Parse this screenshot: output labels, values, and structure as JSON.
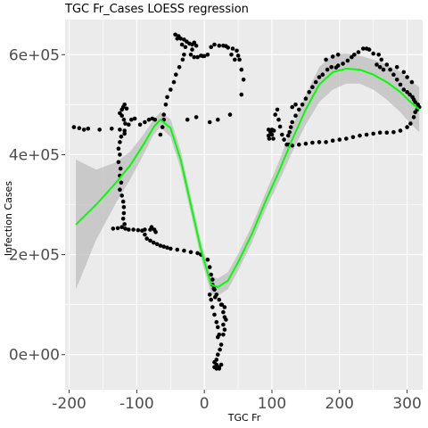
{
  "chart_data": {
    "type": "scatter",
    "title": "TGC Fr_Cases LOESS regression",
    "xlabel": "TGC Fr",
    "ylabel": "Infection Cases",
    "xlim": [
      -206,
      323
    ],
    "ylim": [
      -70000,
      670000
    ],
    "x_ticks": [
      -200,
      -100,
      0,
      100,
      200,
      300
    ],
    "x_tick_labels": [
      "-200",
      "-100",
      "0",
      "100",
      "200",
      "300"
    ],
    "y_ticks": [
      0,
      200000,
      400000,
      600000
    ],
    "y_tick_labels": [
      "0e+00",
      "2e+05",
      "4e+05",
      "6e+05"
    ],
    "grid": true,
    "legend": "none",
    "colors": {
      "panel": "#ebebeb",
      "grid": "#ffffff",
      "points": "#000000",
      "loess_line": "#00ff00",
      "confidence_band": "#bebebe"
    },
    "loess": {
      "x": [
        -190,
        -160,
        -130,
        -110,
        -90,
        -75,
        -65,
        -50,
        -35,
        -20,
        -5,
        10,
        20,
        35,
        50,
        70,
        90,
        110,
        130,
        150,
        170,
        190,
        210,
        230,
        250,
        270,
        290,
        305,
        318
      ],
      "y": [
        260000,
        300000,
        345000,
        378000,
        420000,
        455000,
        470000,
        453000,
        390000,
        300000,
        210000,
        140000,
        135000,
        148000,
        185000,
        240000,
        305000,
        365000,
        430000,
        490000,
        540000,
        565000,
        572000,
        570000,
        560000,
        545000,
        525000,
        505000,
        490000
      ],
      "lower": [
        130000,
        230000,
        305000,
        350000,
        400000,
        440000,
        455000,
        435000,
        372000,
        283000,
        193000,
        122000,
        118000,
        131000,
        168000,
        223000,
        288000,
        345000,
        405000,
        460000,
        505000,
        530000,
        542000,
        542000,
        530000,
        510000,
        485000,
        462000,
        445000
      ],
      "upper": [
        390000,
        370000,
        385000,
        406000,
        440000,
        470000,
        485000,
        471000,
        408000,
        317000,
        227000,
        158000,
        152000,
        165000,
        202000,
        257000,
        322000,
        385000,
        455000,
        520000,
        575000,
        600000,
        602000,
        598000,
        590000,
        580000,
        565000,
        548000,
        535000
      ]
    },
    "points": [
      [
        -193,
        455000
      ],
      [
        -185,
        453000
      ],
      [
        -178,
        450000
      ],
      [
        -172,
        452000
      ],
      [
        -155,
        450000
      ],
      [
        -137,
        452000
      ],
      [
        -125,
        450000
      ],
      [
        -118,
        448000
      ],
      [
        -125,
        483000
      ],
      [
        -122,
        490000
      ],
      [
        -120,
        495000
      ],
      [
        -118,
        500000
      ],
      [
        -115,
        492000
      ],
      [
        -122,
        478000
      ],
      [
        -119,
        470000
      ],
      [
        -117,
        462000
      ],
      [
        -112,
        460000
      ],
      [
        -108,
        470000
      ],
      [
        -103,
        472000
      ],
      [
        -95,
        460000
      ],
      [
        -88,
        465000
      ],
      [
        -82,
        470000
      ],
      [
        -77,
        472000
      ],
      [
        -73,
        470000
      ],
      [
        -118,
        442000
      ],
      [
        -123,
        436000
      ],
      [
        -125,
        425000
      ],
      [
        -127,
        412000
      ],
      [
        -125,
        400000
      ],
      [
        -127,
        385000
      ],
      [
        -124,
        372000
      ],
      [
        -125,
        358000
      ],
      [
        -123,
        344000
      ],
      [
        -125,
        330000
      ],
      [
        -122,
        318000
      ],
      [
        -120,
        306000
      ],
      [
        -119,
        295000
      ],
      [
        -119,
        283000
      ],
      [
        -120,
        272000
      ],
      [
        -118,
        261000
      ],
      [
        -122,
        255000
      ],
      [
        -128,
        253000
      ],
      [
        -135,
        252000
      ],
      [
        -117,
        252000
      ],
      [
        -112,
        250000
      ],
      [
        -105,
        250000
      ],
      [
        -98,
        249000
      ],
      [
        -92,
        248000
      ],
      [
        -88,
        250000
      ],
      [
        -80,
        250000
      ],
      [
        -88,
        240000
      ],
      [
        -85,
        232000
      ],
      [
        -80,
        228000
      ],
      [
        -75,
        224000
      ],
      [
        -70,
        221000
      ],
      [
        -65,
        218000
      ],
      [
        -60,
        216000
      ],
      [
        -55,
        214000
      ],
      [
        -50,
        212000
      ],
      [
        -40,
        210000
      ],
      [
        -30,
        208000
      ],
      [
        -20,
        205000
      ],
      [
        -10,
        203000
      ],
      [
        -5,
        200000
      ],
      [
        -78,
        255000
      ],
      [
        -74,
        250000
      ],
      [
        -72,
        245000
      ],
      [
        -60,
        470000
      ],
      [
        -62,
        455000
      ],
      [
        -65,
        440000
      ],
      [
        -60,
        480000
      ],
      [
        -57,
        500000
      ],
      [
        -55,
        515000
      ],
      [
        -50,
        530000
      ],
      [
        -45,
        545000
      ],
      [
        -42,
        560000
      ],
      [
        -37,
        575000
      ],
      [
        -32,
        590000
      ],
      [
        -30,
        600000
      ],
      [
        -28,
        615000
      ],
      [
        -33,
        620000
      ],
      [
        -40,
        632000
      ],
      [
        -43,
        640000
      ],
      [
        -38,
        637000
      ],
      [
        -35,
        632000
      ],
      [
        -30,
        630000
      ],
      [
        -26,
        626000
      ],
      [
        -22,
        622000
      ],
      [
        -18,
        620000
      ],
      [
        -15,
        624000
      ],
      [
        -12,
        618000
      ],
      [
        -18,
        610000
      ],
      [
        -20,
        600000
      ],
      [
        -15,
        595000
      ],
      [
        -10,
        595000
      ],
      [
        -5,
        598000
      ],
      [
        -2,
        597000
      ],
      [
        0,
        597000
      ],
      [
        5,
        600000
      ],
      [
        10,
        615000
      ],
      [
        15,
        620000
      ],
      [
        22,
        618000
      ],
      [
        28,
        618000
      ],
      [
        32,
        617000
      ],
      [
        35,
        614000
      ],
      [
        42,
        612000
      ],
      [
        48,
        608000
      ],
      [
        50,
        598000
      ],
      [
        52,
        590000
      ],
      [
        55,
        570000
      ],
      [
        58,
        550000
      ],
      [
        55,
        520000
      ],
      [
        38,
        480000
      ],
      [
        20,
        470000
      ],
      [
        8,
        465000
      ],
      [
        -12,
        475000
      ],
      [
        -25,
        470000
      ],
      [
        40,
        600000
      ],
      [
        45,
        590000
      ],
      [
        5,
        190000
      ],
      [
        8,
        175000
      ],
      [
        10,
        160000
      ],
      [
        12,
        140000
      ],
      [
        15,
        130000
      ],
      [
        18,
        120000
      ],
      [
        22,
        110000
      ],
      [
        26,
        100000
      ],
      [
        30,
        95000
      ],
      [
        8,
        120000
      ],
      [
        10,
        110000
      ],
      [
        12,
        95000
      ],
      [
        15,
        80000
      ],
      [
        18,
        65000
      ],
      [
        20,
        55000
      ],
      [
        22,
        40000
      ],
      [
        25,
        20000
      ],
      [
        23,
        10000
      ],
      [
        20,
        0
      ],
      [
        18,
        -10000
      ],
      [
        15,
        -15000
      ],
      [
        18,
        -20000
      ],
      [
        22,
        -25000
      ],
      [
        25,
        -20000
      ],
      [
        22,
        -28000
      ],
      [
        18,
        -28000
      ],
      [
        15,
        -25000
      ],
      [
        20,
        35000
      ],
      [
        28,
        60000
      ],
      [
        30,
        50000
      ],
      [
        28,
        40000
      ],
      [
        32,
        70000
      ],
      [
        25,
        100000
      ],
      [
        28,
        85000
      ],
      [
        30,
        75000
      ],
      [
        12,
        150000
      ],
      [
        14,
        132000
      ],
      [
        16,
        115000
      ],
      [
        95,
        450000
      ],
      [
        98,
        445000
      ],
      [
        100,
        440000
      ],
      [
        102,
        432000
      ],
      [
        95,
        438000
      ],
      [
        96,
        432000
      ],
      [
        100,
        450000
      ],
      [
        103,
        448000
      ],
      [
        105,
        480000
      ],
      [
        108,
        490000
      ],
      [
        110,
        470000
      ],
      [
        112,
        456000
      ],
      [
        115,
        440000
      ],
      [
        118,
        430000
      ],
      [
        122,
        420000
      ],
      [
        125,
        420000
      ],
      [
        130,
        418000
      ],
      [
        140,
        420000
      ],
      [
        150,
        422000
      ],
      [
        160,
        424000
      ],
      [
        170,
        425000
      ],
      [
        180,
        425000
      ],
      [
        190,
        428000
      ],
      [
        200,
        430000
      ],
      [
        210,
        432000
      ],
      [
        220,
        435000
      ],
      [
        230,
        438000
      ],
      [
        240,
        440000
      ],
      [
        250,
        442000
      ],
      [
        260,
        444000
      ],
      [
        270,
        444000
      ],
      [
        280,
        445000
      ],
      [
        290,
        448000
      ],
      [
        300,
        455000
      ],
      [
        305,
        462000
      ],
      [
        310,
        475000
      ],
      [
        312,
        485000
      ],
      [
        315,
        490000
      ],
      [
        318,
        495000
      ],
      [
        316,
        500000
      ],
      [
        312,
        505000
      ],
      [
        310,
        510000
      ],
      [
        308,
        515000
      ],
      [
        304,
        520000
      ],
      [
        300,
        525000
      ],
      [
        295,
        530000
      ],
      [
        290,
        540000
      ],
      [
        285,
        550000
      ],
      [
        280,
        560000
      ],
      [
        275,
        570000
      ],
      [
        270,
        580000
      ],
      [
        262,
        590000
      ],
      [
        258,
        600000
      ],
      [
        250,
        602000
      ],
      [
        244,
        610000
      ],
      [
        240,
        612000
      ],
      [
        235,
        612000
      ],
      [
        228,
        605000
      ],
      [
        222,
        600000
      ],
      [
        218,
        595000
      ],
      [
        212,
        588000
      ],
      [
        205,
        582000
      ],
      [
        198,
        578000
      ],
      [
        195,
        574000
      ],
      [
        180,
        590000
      ],
      [
        190,
        596000
      ],
      [
        198,
        600000
      ],
      [
        188,
        575000
      ],
      [
        182,
        570000
      ],
      [
        175,
        560000
      ],
      [
        170,
        555000
      ],
      [
        165,
        545000
      ],
      [
        160,
        535000
      ],
      [
        155,
        525000
      ],
      [
        150,
        512000
      ],
      [
        145,
        500000
      ],
      [
        140,
        490000
      ],
      [
        135,
        478000
      ],
      [
        130,
        465000
      ],
      [
        128,
        455000
      ],
      [
        126,
        445000
      ],
      [
        124,
        438000
      ],
      [
        130,
        495000
      ],
      [
        135,
        500000
      ],
      [
        255,
        580000
      ],
      [
        260,
        575000
      ],
      [
        265,
        570000
      ],
      [
        285,
        575000
      ],
      [
        295,
        565000
      ],
      [
        300,
        555000
      ],
      [
        307,
        545000
      ]
    ]
  }
}
